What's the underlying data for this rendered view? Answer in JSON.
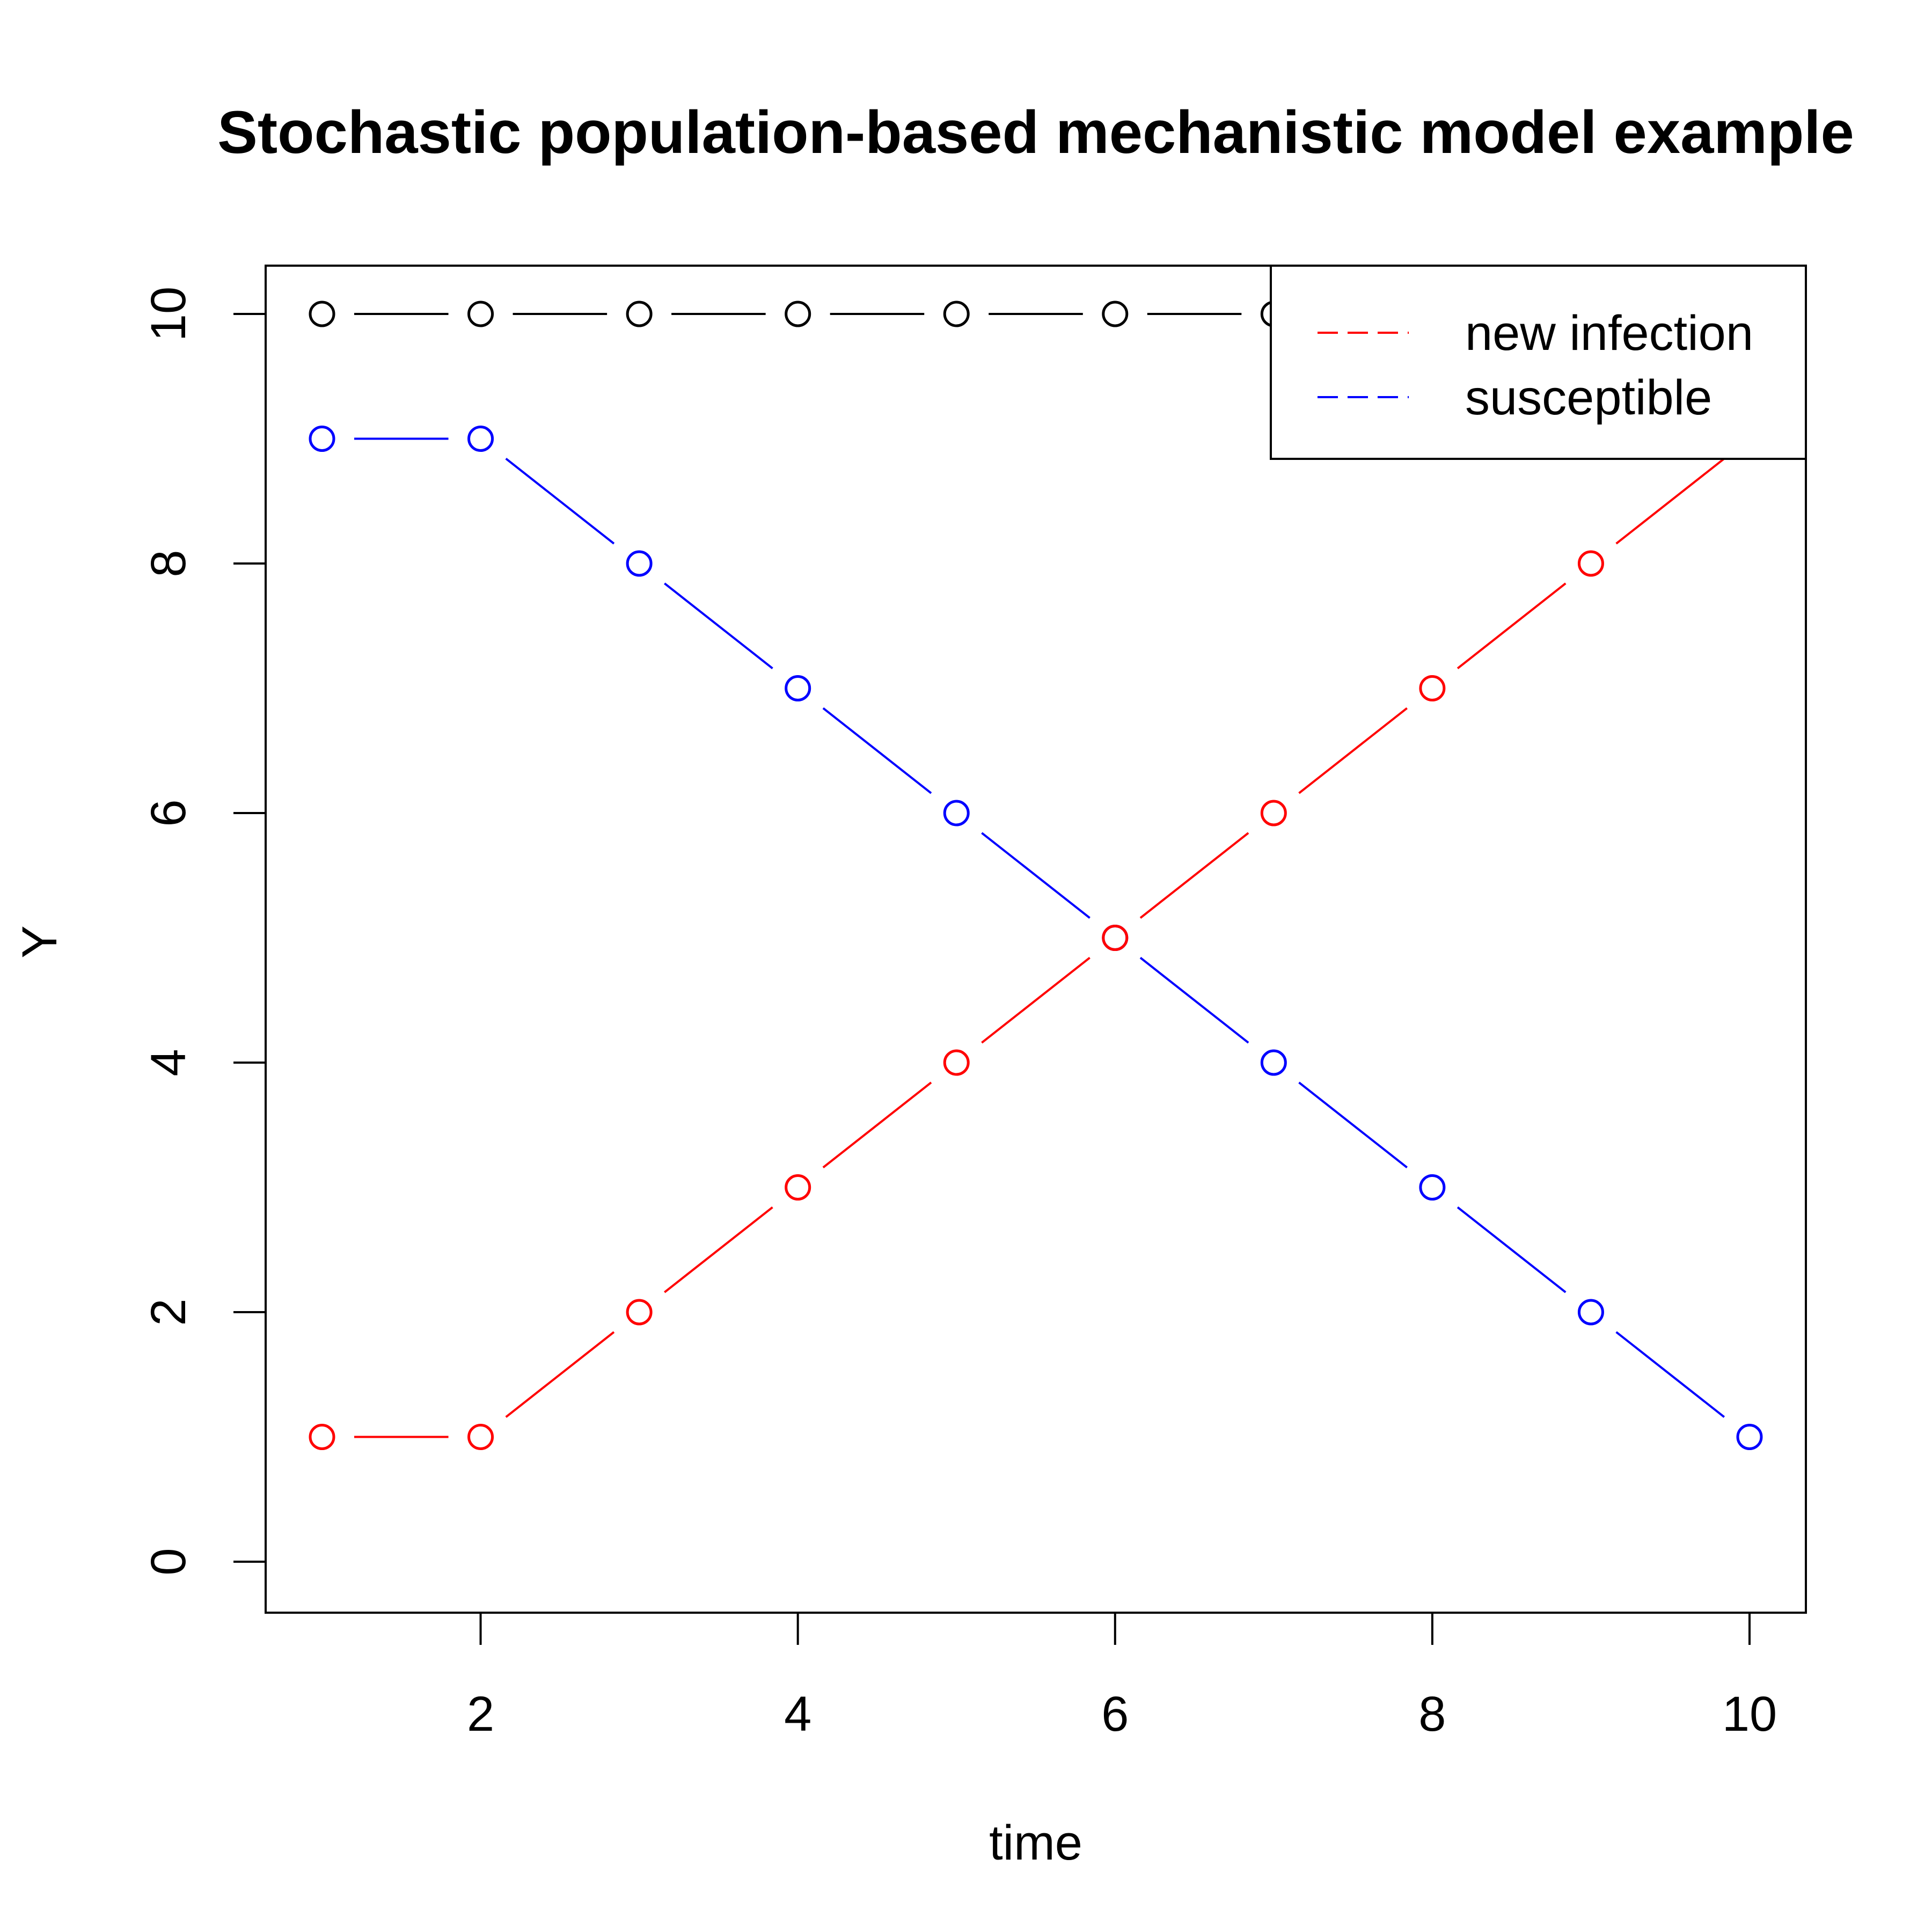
{
  "chart_data": {
    "type": "line",
    "title": "Stochastic population-based mechanistic model example",
    "xlabel": "time",
    "ylabel": "Y",
    "xlim": [
      0.65,
      10.35
    ],
    "ylim": [
      0,
      10.4
    ],
    "x_ticks": [
      2,
      4,
      6,
      8,
      10
    ],
    "y_ticks": [
      0,
      2,
      4,
      6,
      8,
      10
    ],
    "x": [
      1,
      2,
      3,
      4,
      5,
      6,
      7,
      8,
      9,
      10
    ],
    "series": [
      {
        "key": "total",
        "color": "#000000",
        "values": [
          10,
          10,
          10,
          10,
          10,
          10,
          10,
          10,
          10,
          10
        ]
      },
      {
        "key": "susceptible",
        "name": "susceptible",
        "color": "#0000ff",
        "values": [
          9,
          9,
          8,
          7,
          6,
          5,
          4,
          3,
          2,
          1
        ]
      },
      {
        "key": "new-infection",
        "name": "new infection",
        "color": "#ff0000",
        "values": [
          1,
          1,
          2,
          3,
          4,
          5,
          6,
          7,
          8,
          9
        ]
      }
    ],
    "grid": false,
    "legend": {
      "placement": "top-right",
      "entries": [
        {
          "label": "new infection",
          "color": "#ff0000",
          "line": "dashed"
        },
        {
          "label": "susceptible",
          "color": "#0000ff",
          "line": "dashed"
        }
      ]
    }
  }
}
